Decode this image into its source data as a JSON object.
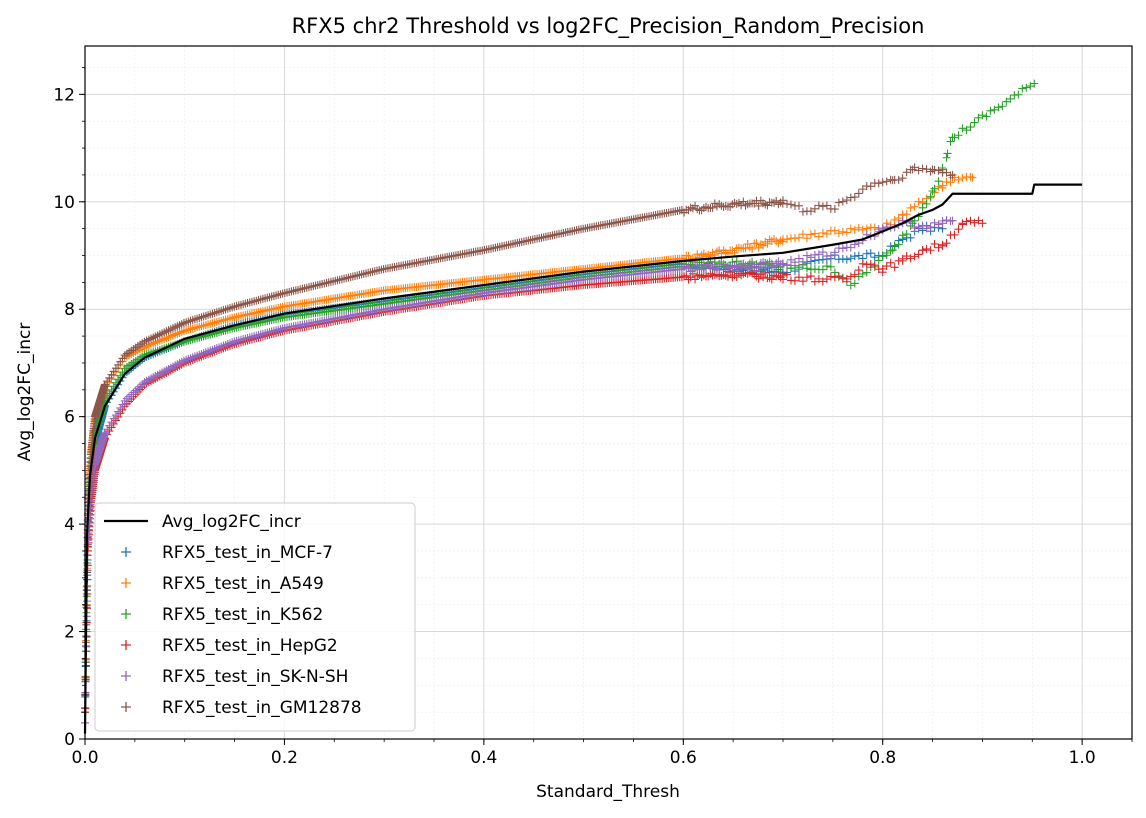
{
  "chart_data": {
    "type": "scatter",
    "title": "RFX5 chr2 Threshold vs log2FC_Precision_Random_Precision",
    "xlabel": "Standard_Thresh",
    "ylabel": "Avg_log2FC_incr",
    "xlim": [
      0.0,
      1.05
    ],
    "ylim": [
      0,
      12.9
    ],
    "x_ticks": [
      0.0,
      0.2,
      0.4,
      0.6,
      0.8,
      1.0
    ],
    "x_tick_labels": [
      "0.0",
      "0.2",
      "0.4",
      "0.6",
      "0.8",
      "1.0"
    ],
    "y_ticks": [
      0,
      2,
      4,
      6,
      8,
      10,
      12
    ],
    "y_tick_labels": [
      "0",
      "2",
      "4",
      "6",
      "8",
      "10",
      "12"
    ],
    "grid": true,
    "minor_grid": true,
    "legend_position": "lower-left",
    "line": {
      "name": "Avg_log2FC_incr",
      "color": "#000000",
      "points": [
        [
          0.0,
          0.1
        ],
        [
          0.002,
          3.8
        ],
        [
          0.005,
          4.9
        ],
        [
          0.01,
          5.6
        ],
        [
          0.02,
          6.2
        ],
        [
          0.04,
          6.8
        ],
        [
          0.06,
          7.1
        ],
        [
          0.1,
          7.45
        ],
        [
          0.15,
          7.7
        ],
        [
          0.2,
          7.92
        ],
        [
          0.3,
          8.2
        ],
        [
          0.4,
          8.45
        ],
        [
          0.5,
          8.7
        ],
        [
          0.6,
          8.9
        ],
        [
          0.65,
          8.98
        ],
        [
          0.7,
          9.05
        ],
        [
          0.75,
          9.2
        ],
        [
          0.78,
          9.3
        ],
        [
          0.8,
          9.45
        ],
        [
          0.82,
          9.6
        ],
        [
          0.835,
          9.75
        ],
        [
          0.85,
          9.85
        ],
        [
          0.86,
          9.95
        ],
        [
          0.87,
          10.15
        ],
        [
          0.9,
          10.15
        ],
        [
          0.95,
          10.15
        ],
        [
          0.952,
          10.32
        ],
        [
          1.0,
          10.32
        ]
      ]
    },
    "series": [
      {
        "name": "RFX5_test_in_MCF-7",
        "color": "#1f77b4",
        "points": [
          [
            0.0,
            0.5
          ],
          [
            0.003,
            3.9
          ],
          [
            0.006,
            4.8
          ],
          [
            0.01,
            5.5
          ],
          [
            0.02,
            6.2
          ],
          [
            0.04,
            6.8
          ],
          [
            0.06,
            7.1
          ],
          [
            0.1,
            7.4
          ],
          [
            0.15,
            7.7
          ],
          [
            0.2,
            7.9
          ],
          [
            0.3,
            8.15
          ],
          [
            0.4,
            8.4
          ],
          [
            0.5,
            8.65
          ],
          [
            0.6,
            8.85
          ],
          [
            0.65,
            8.75
          ],
          [
            0.7,
            8.7
          ],
          [
            0.72,
            8.8
          ],
          [
            0.75,
            8.95
          ],
          [
            0.8,
            9.0
          ],
          [
            0.82,
            9.3
          ],
          [
            0.84,
            9.5
          ],
          [
            0.86,
            9.5
          ]
        ],
        "end_x": 0.86
      },
      {
        "name": "RFX5_test_in_A549",
        "color": "#ff7f0e",
        "points": [
          [
            0.0,
            0.5
          ],
          [
            0.003,
            4.5
          ],
          [
            0.006,
            5.3
          ],
          [
            0.01,
            5.9
          ],
          [
            0.02,
            6.5
          ],
          [
            0.04,
            7.1
          ],
          [
            0.06,
            7.3
          ],
          [
            0.1,
            7.6
          ],
          [
            0.15,
            7.85
          ],
          [
            0.2,
            8.05
          ],
          [
            0.3,
            8.35
          ],
          [
            0.4,
            8.55
          ],
          [
            0.5,
            8.75
          ],
          [
            0.6,
            8.95
          ],
          [
            0.65,
            9.1
          ],
          [
            0.7,
            9.3
          ],
          [
            0.75,
            9.45
          ],
          [
            0.8,
            9.5
          ],
          [
            0.82,
            9.75
          ],
          [
            0.84,
            10.0
          ],
          [
            0.86,
            10.3
          ],
          [
            0.87,
            10.45
          ],
          [
            0.89,
            10.45
          ]
        ],
        "end_x": 0.89
      },
      {
        "name": "RFX5_test_in_K562",
        "color": "#2ca02c",
        "points": [
          [
            0.0,
            0.5
          ],
          [
            0.003,
            4.2
          ],
          [
            0.006,
            5.0
          ],
          [
            0.01,
            5.7
          ],
          [
            0.02,
            6.3
          ],
          [
            0.04,
            6.9
          ],
          [
            0.06,
            7.15
          ],
          [
            0.1,
            7.4
          ],
          [
            0.15,
            7.65
          ],
          [
            0.2,
            7.85
          ],
          [
            0.3,
            8.1
          ],
          [
            0.4,
            8.35
          ],
          [
            0.5,
            8.6
          ],
          [
            0.6,
            8.8
          ],
          [
            0.65,
            8.85
          ],
          [
            0.7,
            8.8
          ],
          [
            0.75,
            8.75
          ],
          [
            0.77,
            8.45
          ],
          [
            0.79,
            8.8
          ],
          [
            0.81,
            9.1
          ],
          [
            0.83,
            9.6
          ],
          [
            0.85,
            10.2
          ],
          [
            0.86,
            10.6
          ],
          [
            0.865,
            10.9
          ],
          [
            0.87,
            11.2
          ],
          [
            0.952,
            12.2
          ]
        ],
        "end_x": 0.952
      },
      {
        "name": "RFX5_test_in_HepG2",
        "color": "#d62728",
        "points": [
          [
            0.0,
            0.3
          ],
          [
            0.003,
            3.5
          ],
          [
            0.006,
            4.4
          ],
          [
            0.01,
            5.0
          ],
          [
            0.02,
            5.6
          ],
          [
            0.04,
            6.2
          ],
          [
            0.06,
            6.6
          ],
          [
            0.1,
            7.0
          ],
          [
            0.15,
            7.35
          ],
          [
            0.2,
            7.6
          ],
          [
            0.3,
            7.95
          ],
          [
            0.4,
            8.25
          ],
          [
            0.5,
            8.45
          ],
          [
            0.6,
            8.6
          ],
          [
            0.65,
            8.65
          ],
          [
            0.7,
            8.6
          ],
          [
            0.75,
            8.55
          ],
          [
            0.77,
            8.6
          ],
          [
            0.78,
            8.9
          ],
          [
            0.8,
            8.75
          ],
          [
            0.82,
            8.9
          ],
          [
            0.84,
            9.1
          ],
          [
            0.86,
            9.2
          ],
          [
            0.88,
            9.6
          ],
          [
            0.9,
            9.6
          ]
        ],
        "end_x": 0.9
      },
      {
        "name": "RFX5_test_in_SK-N-SH",
        "color": "#9467bd",
        "points": [
          [
            0.0,
            0.3
          ],
          [
            0.003,
            3.7
          ],
          [
            0.006,
            4.5
          ],
          [
            0.01,
            5.1
          ],
          [
            0.02,
            5.7
          ],
          [
            0.04,
            6.3
          ],
          [
            0.06,
            6.65
          ],
          [
            0.1,
            7.05
          ],
          [
            0.15,
            7.4
          ],
          [
            0.2,
            7.65
          ],
          [
            0.3,
            8.0
          ],
          [
            0.4,
            8.3
          ],
          [
            0.5,
            8.55
          ],
          [
            0.6,
            8.75
          ],
          [
            0.65,
            8.8
          ],
          [
            0.7,
            8.85
          ],
          [
            0.75,
            9.05
          ],
          [
            0.78,
            9.3
          ],
          [
            0.8,
            9.5
          ],
          [
            0.82,
            9.6
          ],
          [
            0.84,
            9.55
          ],
          [
            0.86,
            9.6
          ],
          [
            0.87,
            9.65
          ]
        ],
        "end_x": 0.87
      },
      {
        "name": "RFX5_test_in_GM12878",
        "color": "#8c564b",
        "points": [
          [
            0.0,
            0.5
          ],
          [
            0.003,
            4.4
          ],
          [
            0.006,
            5.3
          ],
          [
            0.01,
            6.0
          ],
          [
            0.02,
            6.6
          ],
          [
            0.04,
            7.15
          ],
          [
            0.06,
            7.4
          ],
          [
            0.1,
            7.75
          ],
          [
            0.15,
            8.05
          ],
          [
            0.2,
            8.3
          ],
          [
            0.3,
            8.75
          ],
          [
            0.4,
            9.1
          ],
          [
            0.5,
            9.5
          ],
          [
            0.6,
            9.85
          ],
          [
            0.65,
            9.95
          ],
          [
            0.7,
            10.0
          ],
          [
            0.72,
            9.85
          ],
          [
            0.75,
            9.9
          ],
          [
            0.77,
            10.1
          ],
          [
            0.79,
            10.35
          ],
          [
            0.81,
            10.4
          ],
          [
            0.83,
            10.6
          ],
          [
            0.85,
            10.6
          ],
          [
            0.86,
            10.55
          ],
          [
            0.87,
            10.5
          ]
        ],
        "end_x": 0.87
      }
    ]
  }
}
